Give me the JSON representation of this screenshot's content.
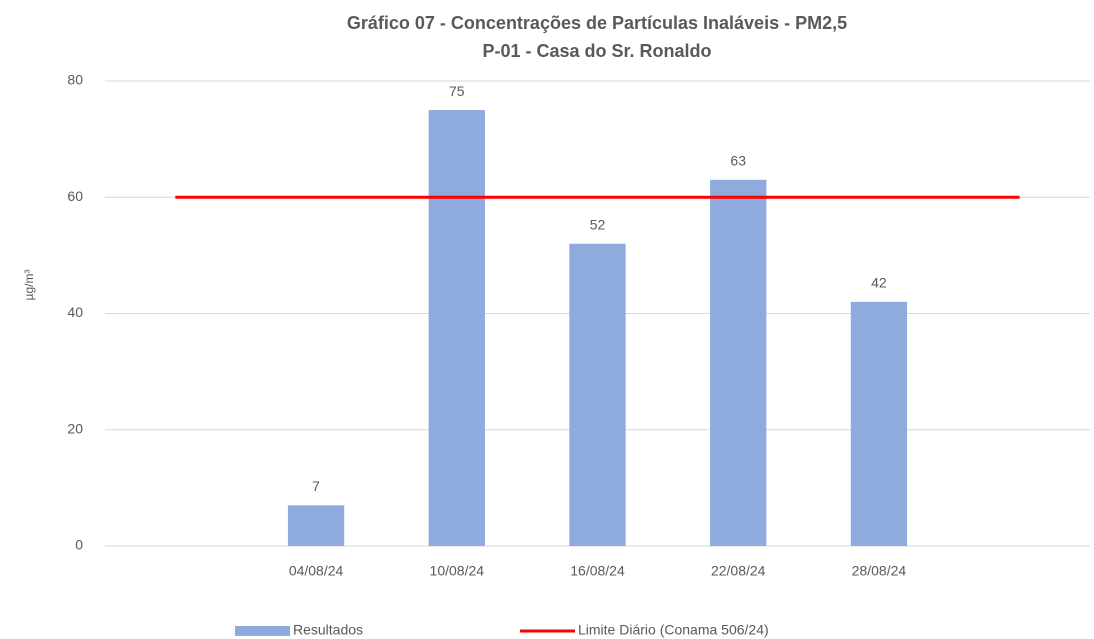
{
  "chart_data": {
    "type": "bar",
    "title": "Gráfico 07  - Concentrações de Partículas Inaláveis - PM2,5",
    "subtitle": "P-01 - Casa do Sr. Ronaldo",
    "y_label": "µg/m³",
    "categories": [
      null,
      "04/08/24",
      "10/08/24",
      "16/08/24",
      "22/08/24",
      "28/08/24",
      null
    ],
    "series": [
      {
        "name": "Resultados",
        "type": "bar",
        "color": "#8faadc",
        "values": [
          null,
          7,
          75,
          52,
          63,
          42,
          null
        ]
      },
      {
        "name": "Limite Diário (Conama 506/24)",
        "type": "line",
        "color": "#ff0000",
        "values": [
          60,
          60,
          60,
          60,
          60,
          60,
          60
        ]
      }
    ],
    "ylim": [
      0,
      80
    ],
    "yticks": [
      0,
      20,
      40,
      60,
      80
    ],
    "grid": true,
    "legend": "bottom"
  }
}
